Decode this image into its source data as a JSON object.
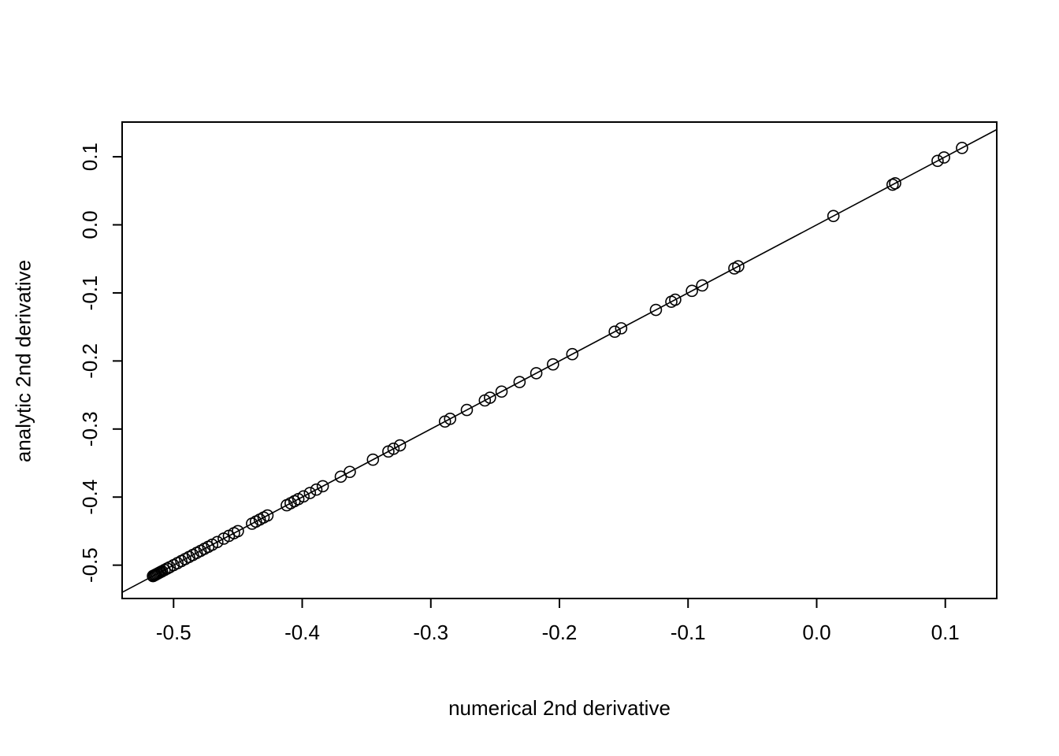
{
  "chart_data": {
    "type": "scatter",
    "title": "",
    "xlabel": "numerical 2nd derivative",
    "ylabel": "analytic 2nd derivative",
    "xlim": [
      -0.54,
      0.14
    ],
    "ylim": [
      -0.549,
      0.151
    ],
    "x_ticks": [
      -0.5,
      -0.4,
      -0.3,
      -0.2,
      -0.1,
      0.0,
      0.1
    ],
    "y_ticks": [
      -0.5,
      -0.4,
      -0.3,
      -0.2,
      -0.1,
      0.0,
      0.1
    ],
    "x_tick_labels": [
      "-0.5",
      "-0.4",
      "-0.3",
      "-0.2",
      "-0.1",
      "0.0",
      "0.1"
    ],
    "y_tick_labels": [
      "-0.5",
      "-0.4",
      "-0.3",
      "-0.2",
      "-0.1",
      "0.0",
      "0.1"
    ],
    "grid": false,
    "legend": "none",
    "identity_line": {
      "intercept": 0,
      "slope": 1
    },
    "marker": {
      "shape": "open-circle",
      "radius_px": 7,
      "stroke": "#000000"
    },
    "points_note": "points lie on the identity line y = x",
    "values": [
      0.113,
      0.099,
      0.094,
      0.061,
      0.059,
      0.013,
      -0.061,
      -0.064,
      -0.089,
      -0.097,
      -0.11,
      -0.113,
      -0.125,
      -0.152,
      -0.157,
      -0.19,
      -0.205,
      -0.218,
      -0.231,
      -0.245,
      -0.254,
      -0.258,
      -0.272,
      -0.285,
      -0.289,
      -0.324,
      -0.329,
      -0.333,
      -0.345,
      -0.363,
      -0.37,
      -0.384,
      -0.389,
      -0.394,
      -0.399,
      -0.403,
      -0.406,
      -0.409,
      -0.412,
      -0.427,
      -0.43,
      -0.433,
      -0.436,
      -0.439,
      -0.45,
      -0.453,
      -0.457,
      -0.461,
      -0.466,
      -0.47,
      -0.473,
      -0.476,
      -0.479,
      -0.482,
      -0.485,
      -0.488,
      -0.491,
      -0.494,
      -0.497,
      -0.5,
      -0.503,
      -0.505,
      -0.507,
      -0.509,
      -0.51,
      -0.511,
      -0.512,
      -0.513,
      -0.514,
      -0.514,
      -0.515,
      -0.515,
      -0.516,
      -0.516
    ]
  },
  "colors": {
    "foreground": "#000000",
    "background": "#ffffff"
  }
}
